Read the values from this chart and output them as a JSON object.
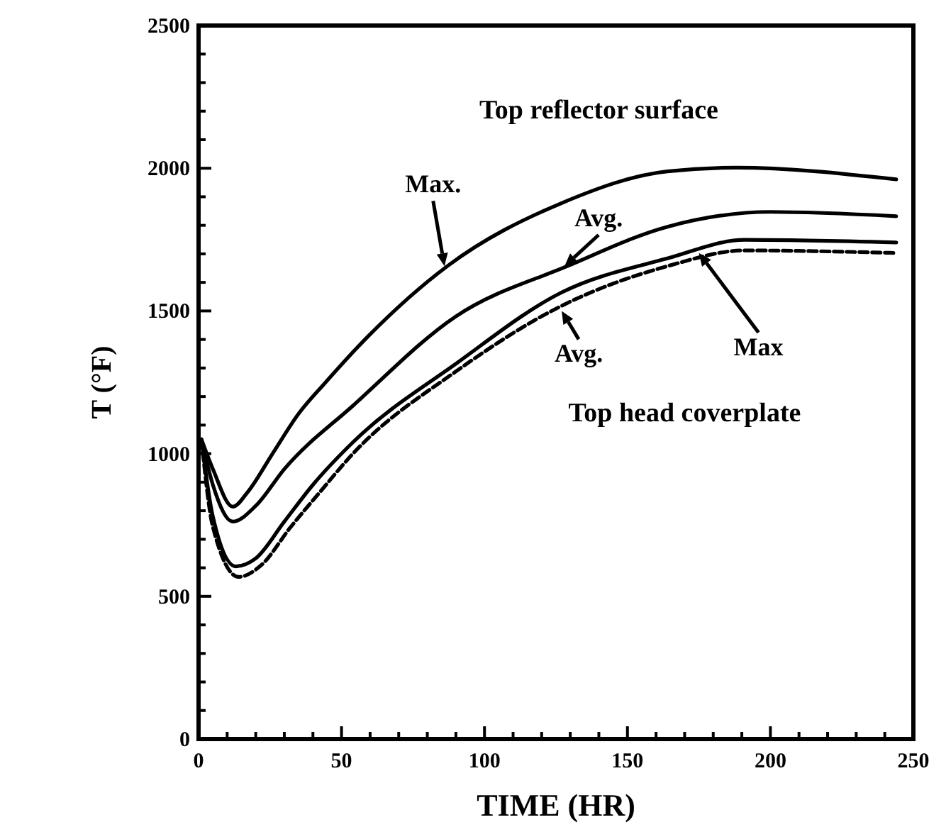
{
  "chart_data": {
    "type": "line",
    "xlabel": "TIME (HR)",
    "ylabel": "T (°F)",
    "xlim": [
      0,
      250
    ],
    "ylim": [
      0,
      2500
    ],
    "xticks": [
      0,
      {
        "value": 10,
        "label": null
      },
      {
        "value": 20,
        "label": null
      },
      {
        "value": 30,
        "label": null
      },
      {
        "value": 40,
        "label": null
      },
      50,
      {
        "value": 60,
        "label": null
      },
      {
        "value": 70,
        "label": null
      },
      {
        "value": 80,
        "label": null
      },
      {
        "value": 90,
        "label": null
      },
      100,
      {
        "value": 110,
        "label": null
      },
      {
        "value": 120,
        "label": null
      },
      {
        "value": 130,
        "label": null
      },
      {
        "value": 140,
        "label": null
      },
      150,
      {
        "value": 160,
        "label": null
      },
      {
        "value": 170,
        "label": null
      },
      {
        "value": 180,
        "label": null
      },
      {
        "value": 190,
        "label": null
      },
      200,
      {
        "value": 210,
        "label": null
      },
      {
        "value": 220,
        "label": null
      },
      {
        "value": 230,
        "label": null
      },
      {
        "value": 240,
        "label": null
      },
      250
    ],
    "yticks": [
      0,
      {
        "value": 100,
        "label": null
      },
      {
        "value": 200,
        "label": null
      },
      {
        "value": 300,
        "label": null
      },
      {
        "value": 400,
        "label": null
      },
      500,
      {
        "value": 600,
        "label": null
      },
      {
        "value": 700,
        "label": null
      },
      {
        "value": 800,
        "label": null
      },
      {
        "value": 900,
        "label": null
      },
      1000,
      {
        "value": 1100,
        "label": null
      },
      {
        "value": 1200,
        "label": null
      },
      {
        "value": 1300,
        "label": null
      },
      {
        "value": 1400,
        "label": null
      },
      1500,
      {
        "value": 1600,
        "label": null
      },
      {
        "value": 1700,
        "label": null
      },
      {
        "value": 1800,
        "label": null
      },
      {
        "value": 1900,
        "label": null
      },
      2000,
      {
        "value": 2100,
        "label": null
      },
      {
        "value": 2200,
        "label": null
      },
      {
        "value": 2300,
        "label": null
      },
      {
        "value": 2400,
        "label": null
      },
      2500
    ],
    "grid": false,
    "series": [
      {
        "color": "#000000",
        "line_style": "solid",
        "x": [
          1,
          5,
          12,
          17,
          26,
          35,
          44,
          59,
          87,
          127,
          164,
          188,
          244
        ],
        "values": [
          1050,
          946,
          814,
          863,
          1002,
          1140,
          1245,
          1408,
          1657,
          1878,
          1989,
          2002,
          1961
        ]
      },
      {
        "color": "#000000",
        "line_style": "solid",
        "x": [
          1,
          5,
          12,
          20,
          30,
          54,
          90,
          129,
          164,
          200,
          244
        ],
        "values": [
          1050,
          891,
          762,
          817,
          946,
          1168,
          1481,
          1657,
          1795,
          1847,
          1832
        ]
      },
      {
        "color": "#000000",
        "line_style": "solid",
        "x": [
          1,
          5,
          13,
          20,
          30,
          40,
          54,
          90,
          127,
          164,
          191,
          244
        ],
        "values": [
          1050,
          780,
          605,
          633,
          762,
          891,
          1040,
          1315,
          1565,
          1684,
          1749,
          1740
        ]
      },
      {
        "color": "#000000",
        "line_style": "dashed",
        "x": [
          1,
          5,
          14,
          22,
          32,
          42,
          54,
          90,
          127,
          164,
          191,
          244
        ],
        "values": [
          1050,
          743,
          568,
          610,
          740,
          860,
          1000,
          1288,
          1518,
          1657,
          1712,
          1703
        ]
      }
    ],
    "annotations": [
      "Top reflector surface",
      "Top head coverplate",
      {
        "text": "Max.",
        "x": 86,
        "y": 1657
      },
      {
        "text": "Avg.",
        "x": 128,
        "y": 1657
      },
      {
        "text": "Avg.",
        "x": 127,
        "y": 1500
      },
      {
        "text": "Max",
        "x": 175,
        "y": 1703
      }
    ]
  }
}
